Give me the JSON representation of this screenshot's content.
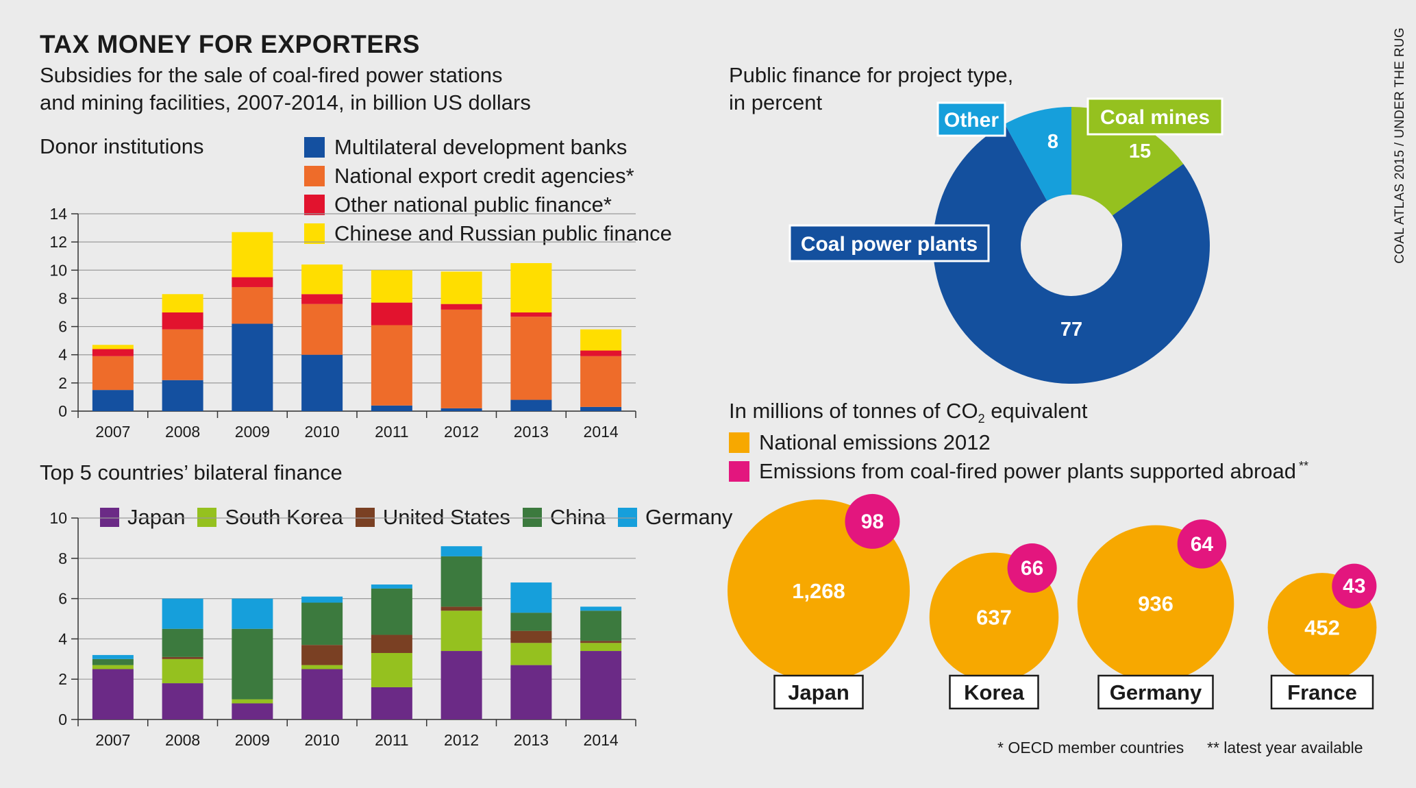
{
  "title": "TAX MONEY FOR EXPORTERS",
  "subtitle_line1": "Subsidies for the sale of coal-fired power stations",
  "subtitle_line2": "and mining facilities, 2007-2014, in billion US dollars",
  "credit": "COAL ATLAS 2015 / UNDER THE RUG",
  "footnotes": {
    "oecd": "* OECD member countries",
    "latest": "** latest year available"
  },
  "chart_data": [
    {
      "id": "donor",
      "type": "bar",
      "stacked": true,
      "title": "Donor institutions",
      "categories": [
        "2007",
        "2008",
        "2009",
        "2010",
        "2011",
        "2012",
        "2013",
        "2014"
      ],
      "ylim": [
        0,
        14
      ],
      "yticks": [
        0,
        2,
        4,
        6,
        8,
        10,
        12,
        14
      ],
      "grid": true,
      "series": [
        {
          "name": "Multilateral development banks",
          "color": "#1450a0",
          "values": [
            1.5,
            2.2,
            6.2,
            4.0,
            0.4,
            0.2,
            0.8,
            0.3
          ]
        },
        {
          "name": "National export credit agencies*",
          "color": "#ee6c2a",
          "values": [
            2.4,
            3.6,
            2.6,
            3.6,
            5.7,
            7.0,
            5.9,
            3.6
          ]
        },
        {
          "name": "Other national public finance*",
          "color": "#e2132e",
          "values": [
            0.5,
            1.2,
            0.7,
            0.7,
            1.6,
            0.4,
            0.3,
            0.4
          ]
        },
        {
          "name": "Chinese and Russian public finance",
          "color": "#ffde00",
          "values": [
            0.3,
            1.3,
            3.2,
            2.1,
            2.3,
            2.3,
            3.5,
            1.5
          ]
        }
      ]
    },
    {
      "id": "bilateral",
      "type": "bar",
      "stacked": true,
      "title": "Top 5 countries’ bilateral finance",
      "categories": [
        "2007",
        "2008",
        "2009",
        "2010",
        "2011",
        "2012",
        "2013",
        "2014"
      ],
      "ylim": [
        0,
        10
      ],
      "yticks": [
        0,
        2,
        4,
        6,
        8,
        10
      ],
      "grid": true,
      "series": [
        {
          "name": "Japan",
          "color": "#6b2a86",
          "values": [
            2.5,
            1.8,
            0.8,
            2.5,
            1.6,
            3.4,
            2.7,
            3.4
          ]
        },
        {
          "name": "South Korea",
          "color": "#95c11f",
          "values": [
            0.2,
            1.2,
            0.2,
            0.2,
            1.7,
            2.0,
            1.1,
            0.4
          ]
        },
        {
          "name": "United States",
          "color": "#7a4023",
          "values": [
            0.0,
            0.1,
            0.0,
            1.0,
            0.9,
            0.2,
            0.6,
            0.1
          ]
        },
        {
          "name": "China",
          "color": "#3c7a3e",
          "values": [
            0.3,
            1.4,
            3.5,
            2.1,
            2.3,
            2.5,
            0.9,
            1.5
          ]
        },
        {
          "name": "Germany",
          "color": "#169fdb",
          "values": [
            0.2,
            1.5,
            1.5,
            0.3,
            0.2,
            0.5,
            1.5,
            0.2
          ]
        }
      ]
    },
    {
      "id": "project-type",
      "type": "pie",
      "donut": true,
      "title_line1": "Public finance for project type,",
      "title_line2": "in percent",
      "slices": [
        {
          "label": "Coal mines",
          "value": 15,
          "color": "#95c11f"
        },
        {
          "label": "Coal power plants",
          "value": 77,
          "color": "#14509e"
        },
        {
          "label": "Other",
          "value": 8,
          "color": "#169fdb"
        }
      ]
    },
    {
      "id": "emissions",
      "type": "bubble",
      "title_pre": "In millions of tonnes of CO",
      "title_sub": "2",
      "title_post": " equivalent",
      "legend": [
        {
          "name": "National emissions 2012",
          "color": "#f7a800"
        },
        {
          "name": "Emissions from coal-fired power plants supported abroad",
          "marker": "**",
          "color": "#e3167e"
        }
      ],
      "countries": [
        {
          "name": "Japan",
          "national": 1268,
          "national_label": "1,268",
          "abroad": 98,
          "abroad_label": "98"
        },
        {
          "name": "Korea",
          "national": 637,
          "national_label": "637",
          "abroad": 66,
          "abroad_label": "66"
        },
        {
          "name": "Germany",
          "national": 936,
          "national_label": "936",
          "abroad": 64,
          "abroad_label": "64"
        },
        {
          "name": "France",
          "national": 452,
          "national_label": "452",
          "abroad": 43,
          "abroad_label": "43"
        }
      ]
    }
  ]
}
